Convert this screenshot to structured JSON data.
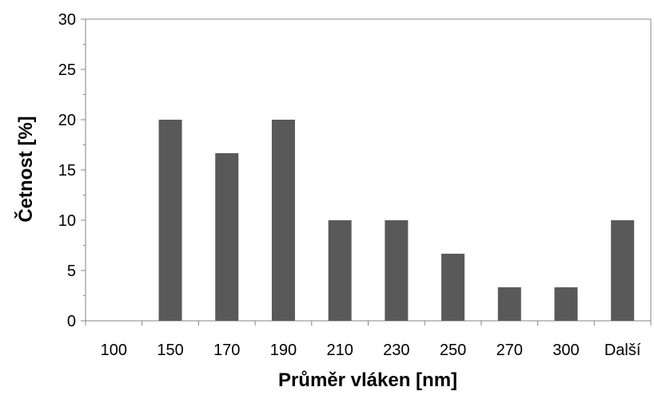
{
  "chart_data": {
    "type": "bar",
    "categories": [
      "100",
      "150",
      "170",
      "190",
      "210",
      "230",
      "250",
      "270",
      "300",
      "Další"
    ],
    "values": [
      0,
      20,
      16.67,
      20,
      10,
      10,
      6.67,
      3.33,
      3.33,
      10
    ],
    "title": "",
    "xlabel": "Průměr vláken [nm]",
    "ylabel": "Četnost [%]",
    "ylim": [
      0,
      30
    ],
    "yticks": [
      0,
      5,
      10,
      15,
      20,
      25,
      30
    ],
    "grid": false,
    "legend": "none",
    "bar_color": "#595959",
    "axis_color": "#868686"
  }
}
